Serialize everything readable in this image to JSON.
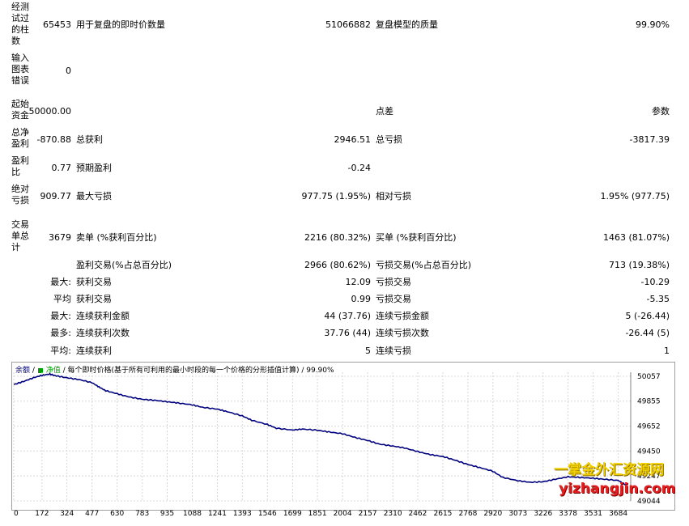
{
  "report": {
    "bars_tested": {
      "label": "经测试过的柱数",
      "value": "65453"
    },
    "ticks_modelled": {
      "label": "用于复盘的即时价数量",
      "value": "51066882"
    },
    "modelling_quality": {
      "label": "复盘模型的质量",
      "value": "99.90%"
    },
    "mismatched_errors": {
      "label": "输入图表错误",
      "value": "0"
    },
    "initial_deposit": {
      "label": "起始资金",
      "value": "50000.00"
    },
    "spread": {
      "label": "点差",
      "value": "参数"
    },
    "total_net_profit": {
      "label": "总净盈利",
      "value": "-870.88"
    },
    "gross_profit": {
      "label": "总获利",
      "value": "2946.51"
    },
    "gross_loss": {
      "label": "总亏损",
      "value": "-3817.39"
    },
    "profit_factor": {
      "label": "盈利比",
      "value": "0.77"
    },
    "expected_payoff": {
      "label": "预期盈利",
      "value": "-0.24"
    },
    "absolute_drawdown": {
      "label": "绝对亏损",
      "value": "909.77"
    },
    "maximal_drawdown": {
      "label": "最大亏损",
      "value": "977.75 (1.95%)"
    },
    "relative_drawdown": {
      "label": "相对亏损",
      "value": "1.95% (977.75)"
    },
    "total_trades": {
      "label": "交易单总计",
      "value": "3679"
    },
    "short_positions": {
      "label": "卖单 (%获利百分比)",
      "value": "2216 (80.32%)"
    },
    "long_positions": {
      "label": "买单 (%获利百分比)",
      "value": "1463 (81.07%)"
    },
    "profit_trades": {
      "label": "盈利交易(%占总百分比)",
      "value": "2966 (80.62%)"
    },
    "loss_trades": {
      "label": "亏损交易(%占总百分比)",
      "value": "713 (19.38%)"
    },
    "largest": {
      "prefix": "最大:",
      "profit_label": "获利交易",
      "profit_value": "12.09",
      "loss_label": "亏损交易",
      "loss_value": "-10.29"
    },
    "average": {
      "prefix": "平均",
      "profit_label": "获利交易",
      "profit_value": "0.99",
      "loss_label": "亏损交易",
      "loss_value": "-5.35"
    },
    "max_consecutive": {
      "prefix": "最大:",
      "profit_label": "连续获利金额",
      "profit_value": "44 (37.76)",
      "loss_label": "连续亏损金额",
      "loss_value": "5 (-26.44)"
    },
    "maximal_consecutive": {
      "prefix": "最多:",
      "profit_label": "连续获利次数",
      "profit_value": "37.76 (44)",
      "loss_label": "连续亏损次数",
      "loss_value": "-26.44 (5)"
    },
    "average_consecutive": {
      "prefix": "平均:",
      "profit_label": "连续获利",
      "profit_value": "5",
      "loss_label": "连续亏损",
      "loss_value": "1"
    }
  },
  "chart_header": {
    "balance": "余额",
    "sep": "/",
    "equity": "净值",
    "rest": "/ 每个即时价格(基于所有可利用的最小时段的每一个价格的分形插值计算) / 99.90%"
  },
  "watermark": {
    "line1": "一掌金外汇资源网",
    "line2": "yizhangjin.com"
  },
  "colors": {
    "balance_line": "#00007f",
    "equity_legend": "#00a000",
    "grid": "#d8d8d8"
  },
  "chart_data": {
    "type": "line",
    "title": "",
    "xlabel": "",
    "ylabel": "",
    "x_ticks": [
      0,
      172,
      324,
      477,
      630,
      783,
      935,
      1088,
      1241,
      1393,
      1546,
      1699,
      1851,
      2004,
      2157,
      2310,
      2462,
      2615,
      2768,
      2920,
      3073,
      3226,
      3378,
      3531,
      3684
    ],
    "y_ticks": [
      50057,
      49855,
      49652,
      49450,
      49247,
      49044
    ],
    "xlim": [
      0,
      3760
    ],
    "ylim": [
      49044,
      50090
    ],
    "series": [
      {
        "x": [
          0,
          60,
          120,
          172,
          220,
          260,
          324,
          400,
          477,
          520,
          560,
          630,
          700,
          783,
          860,
          935,
          1000,
          1088,
          1150,
          1241,
          1300,
          1393,
          1450,
          1546,
          1600,
          1699,
          1760,
          1851,
          1920,
          2004,
          2080,
          2157,
          2230,
          2310,
          2380,
          2462,
          2540,
          2615,
          2690,
          2768,
          2840,
          2920,
          2980,
          3073,
          3150,
          3226,
          3300,
          3378,
          3450,
          3531,
          3600,
          3684,
          3730
        ],
        "y": [
          49990,
          50015,
          50045,
          50065,
          50075,
          50060,
          50045,
          50030,
          50005,
          49970,
          49940,
          49915,
          49890,
          49870,
          49862,
          49850,
          49840,
          49825,
          49805,
          49790,
          49770,
          49735,
          49700,
          49665,
          49635,
          49620,
          49628,
          49618,
          49605,
          49590,
          49560,
          49535,
          49505,
          49490,
          49475,
          49445,
          49420,
          49405,
          49375,
          49340,
          49315,
          49285,
          49235,
          49208,
          49195,
          49200,
          49220,
          49240,
          49235,
          49228,
          49220,
          49210,
          49175
        ]
      }
    ]
  }
}
